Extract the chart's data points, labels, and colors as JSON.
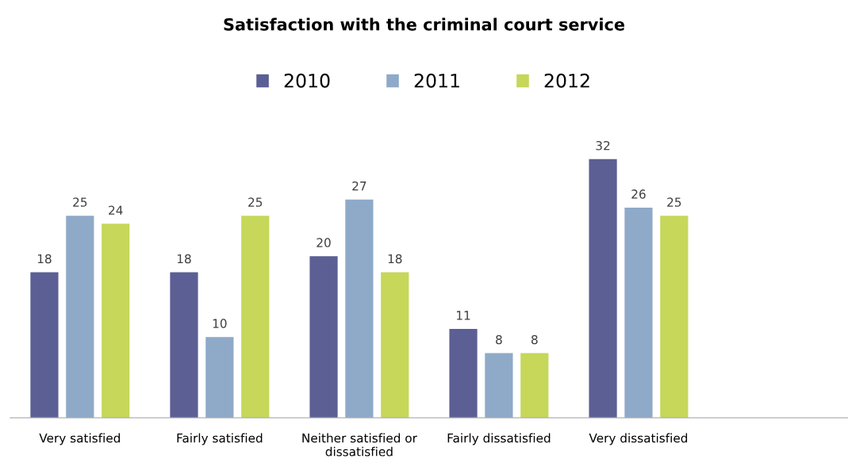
{
  "chart_data": {
    "type": "bar",
    "title": "Satisfaction with the criminal court service",
    "categories": [
      "Very satisfied",
      "Fairly satisfied",
      "Neither satisfied or\ndissatisfied",
      "Fairly dissatisfied",
      "Very dissatisfied"
    ],
    "series": [
      {
        "name": "2010",
        "color": "#5b5f94",
        "values": [
          18,
          18,
          20,
          11,
          32
        ]
      },
      {
        "name": "2011",
        "color": "#8eaac8",
        "values": [
          25,
          10,
          27,
          8,
          26
        ]
      },
      {
        "name": "2012",
        "color": "#c6d75a",
        "values": [
          24,
          25,
          18,
          8,
          25
        ]
      }
    ],
    "data_labels": true,
    "legend": "top",
    "grid": false
  }
}
